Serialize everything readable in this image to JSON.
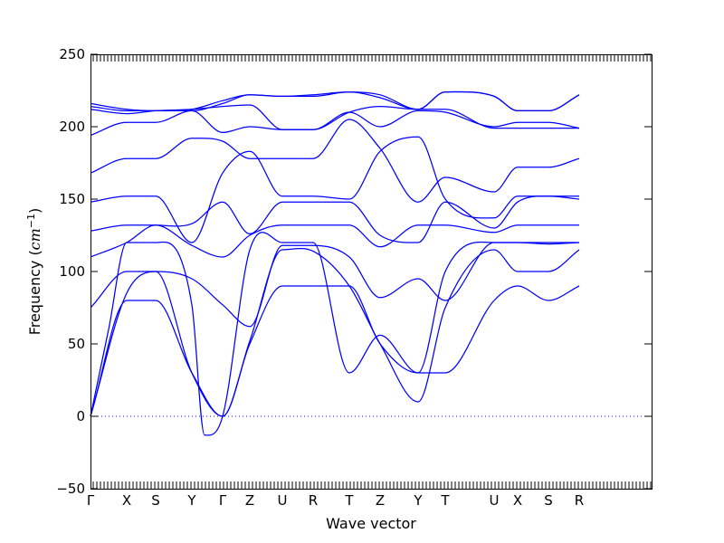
{
  "chart_data": {
    "type": "line",
    "xlabel": "Wave vector",
    "ylabel_text": "Frequency (",
    "ylabel_unit": "cm",
    "ylabel_exp": "−1",
    "ylabel_close": ")",
    "ylim": [
      -50,
      250
    ],
    "yticks": [
      -50,
      0,
      50,
      100,
      150,
      200,
      250
    ],
    "ytick_labels": [
      "−50",
      "0",
      "50",
      "100",
      "150",
      "200",
      "250"
    ],
    "xlim": [
      0,
      31
    ],
    "high_symmetry_points": [
      {
        "label": "Γ",
        "x": 0
      },
      {
        "label": "X",
        "x": 2
      },
      {
        "label": "S",
        "x": 3.6
      },
      {
        "label": "Y",
        "x": 5.6
      },
      {
        "label": "Γ",
        "x": 7.3
      },
      {
        "label": "Z",
        "x": 8.8
      },
      {
        "label": "U",
        "x": 10.6
      },
      {
        "label": "R",
        "x": 12.3
      },
      {
        "label": "T",
        "x": 14.3
      },
      {
        "label": "Z",
        "x": 16
      },
      {
        "label": "Y",
        "x": 18.1
      },
      {
        "label": "T",
        "x": 19.6
      },
      {
        "label": "U",
        "x": 22.3
      },
      {
        "label": "X",
        "x": 23.6
      },
      {
        "label": "S",
        "x": 25.3
      },
      {
        "label": "R",
        "x": 27
      }
    ],
    "zero_line": true,
    "line_color": "#0000ff",
    "series": [
      {
        "x": [
          0,
          2,
          3.6,
          5.6,
          7.3,
          8.8,
          10.6,
          12.3,
          14.3,
          16,
          18.1,
          19.6,
          22.3,
          23.6,
          25.3,
          27
        ],
        "y": [
          0,
          80,
          80,
          30,
          0,
          50,
          90,
          90,
          90,
          50,
          30,
          30,
          80,
          90,
          80,
          90
        ]
      },
      {
        "x": [
          0,
          2,
          3.6,
          5.6,
          7.3,
          8.8,
          10.6,
          12.3,
          14.3,
          16,
          18.1,
          19.6,
          22.3,
          23.6,
          25.3,
          27
        ],
        "y": [
          0,
          85,
          100,
          30,
          0,
          52,
          115,
          114,
          90,
          50,
          10,
          75,
          115,
          100,
          100,
          115
        ]
      },
      {
        "x": [
          0,
          1,
          2,
          3.6,
          5.6,
          6.3,
          7.3,
          8.8,
          10.6,
          12.3,
          14.3,
          16,
          18.1,
          19.6,
          22.3,
          23.6,
          25.3,
          27
        ],
        "y": [
          0,
          60,
          120,
          120,
          77,
          -13,
          0,
          115,
          120,
          120,
          30,
          56,
          30,
          100,
          120,
          120,
          119,
          120
        ]
      },
      {
        "x": [
          0,
          2,
          3.6,
          5.6,
          7.3,
          8.8,
          10.6,
          12.3,
          14.3,
          16,
          18.1,
          19.6,
          22.3,
          23.6,
          25.3,
          27
        ],
        "y": [
          75,
          100,
          100,
          95,
          77,
          62,
          118,
          118,
          110,
          82,
          95,
          80,
          120,
          120,
          120,
          120
        ]
      },
      {
        "x": [
          0,
          2,
          3.6,
          5.6,
          7.3,
          8.8,
          10.6,
          12.3,
          14.3,
          16,
          18.1,
          19.6,
          22.3,
          23.6,
          25.3,
          27
        ],
        "y": [
          110,
          120,
          132,
          118,
          110,
          125,
          132,
          132,
          132,
          117,
          132,
          132,
          127,
          132,
          132,
          132
        ]
      },
      {
        "x": [
          0,
          2,
          3.6,
          5.6,
          7.3,
          8.8,
          10.6,
          12.3,
          14.3,
          16,
          18.1,
          19.6,
          22.3,
          23.6,
          25.3,
          27
        ],
        "y": [
          128,
          132,
          132,
          133,
          148,
          126,
          148,
          148,
          148,
          125,
          120,
          148,
          130,
          148,
          152,
          150
        ]
      },
      {
        "x": [
          0,
          2,
          3.6,
          5.6,
          7.3,
          8.8,
          10.6,
          12.3,
          14.3,
          16,
          18.1,
          19.6,
          22.3,
          23.6,
          25.3,
          27
        ],
        "y": [
          148,
          152,
          152,
          120,
          168,
          183,
          152,
          152,
          150,
          183,
          193,
          150,
          137,
          152,
          152,
          152
        ]
      },
      {
        "x": [
          0,
          2,
          3.6,
          5.6,
          7.3,
          8.8,
          10.6,
          12.3,
          14.3,
          16,
          18.1,
          19.6,
          22.3,
          23.6,
          25.3,
          27
        ],
        "y": [
          168,
          178,
          178,
          192,
          190,
          178,
          178,
          178,
          205,
          185,
          148,
          165,
          155,
          172,
          172,
          178
        ]
      },
      {
        "x": [
          0,
          2,
          3.6,
          5.6,
          7.3,
          8.8,
          10.6,
          12.3,
          14.3,
          16,
          18.1,
          19.6,
          22.3,
          23.6,
          25.3,
          27
        ],
        "y": [
          194,
          203,
          203,
          211,
          196,
          200,
          198,
          198,
          210,
          200,
          211,
          210,
          200,
          203,
          203,
          199
        ]
      },
      {
        "x": [
          0,
          2,
          3.6,
          5.6,
          7.3,
          8.8,
          10.6,
          12.3,
          14.3,
          16,
          18.1,
          19.6,
          22.3,
          23.6,
          25.3,
          27
        ],
        "y": [
          212,
          209,
          211,
          212,
          214,
          215,
          198,
          198,
          210,
          214,
          212,
          212,
          199,
          199,
          199,
          199
        ]
      },
      {
        "x": [
          0,
          2,
          3.6,
          5.6,
          7.3,
          8.8,
          10.6,
          12.3,
          14.3,
          16,
          18.1,
          19.6,
          22.3,
          23.6,
          25.3,
          27
        ],
        "y": [
          214,
          211,
          211,
          211,
          216,
          222,
          221,
          221,
          224,
          222,
          212,
          224,
          221,
          211,
          211,
          222
        ]
      },
      {
        "x": [
          0,
          2,
          3.6,
          5.6,
          7.3,
          8.8,
          10.6,
          12.3,
          14.3,
          16,
          18.1,
          19.6,
          22.3,
          23.6,
          25.3,
          27
        ],
        "y": [
          216,
          212,
          211,
          212,
          218,
          222,
          221,
          222,
          224,
          220,
          212,
          224,
          221,
          211,
          211,
          222
        ]
      }
    ]
  }
}
